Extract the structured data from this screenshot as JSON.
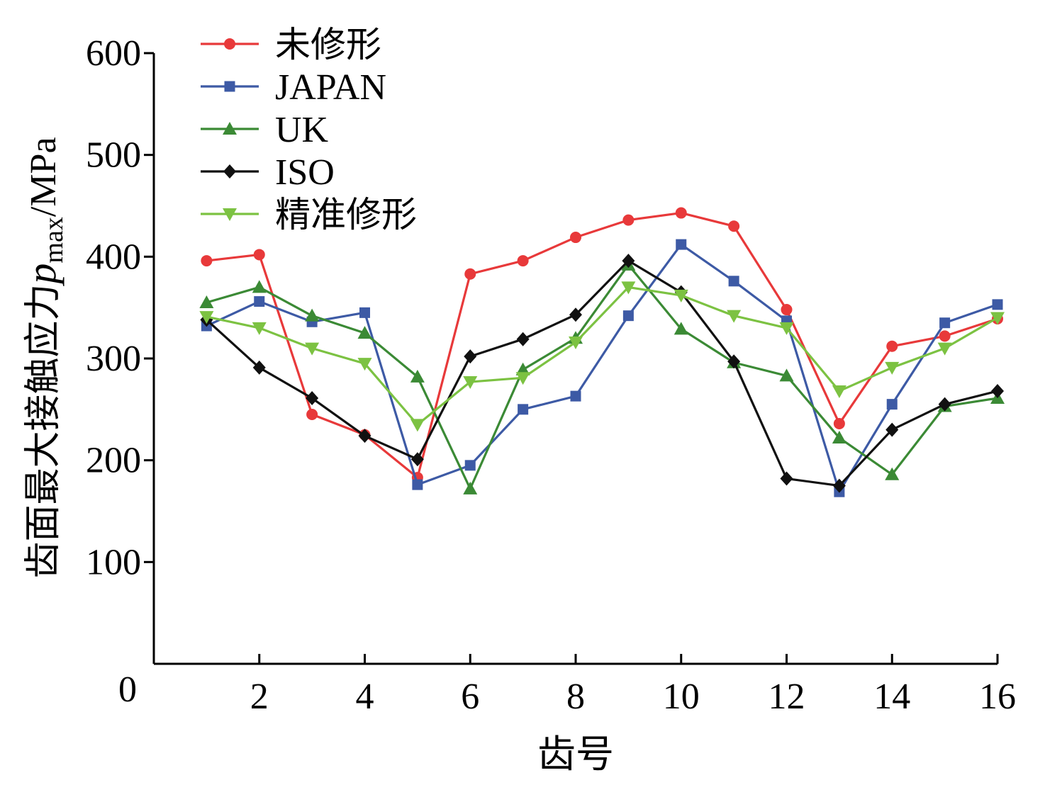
{
  "chart_data": {
    "type": "line",
    "title": "",
    "xlabel": "齿号",
    "ylabel": {
      "prefix": "齿面最大接触应力",
      "symbol": "p",
      "subscript": "max",
      "unit": "/MPa"
    },
    "x": [
      1,
      2,
      3,
      4,
      5,
      6,
      7,
      8,
      9,
      10,
      11,
      12,
      13,
      14,
      15,
      16
    ],
    "xlim": [
      0,
      16
    ],
    "ylim": [
      0,
      600
    ],
    "xticks": [
      2,
      4,
      6,
      8,
      10,
      12,
      14,
      16
    ],
    "yticks": [
      100,
      200,
      300,
      400,
      500,
      600
    ],
    "origin_label": "0",
    "grid": false,
    "legend_position": "top-left",
    "series": [
      {
        "name": "未修形",
        "color": "#e8393a",
        "marker": "circle",
        "values": [
          396,
          402,
          245,
          225,
          183,
          383,
          396,
          419,
          436,
          443,
          430,
          348,
          236,
          312,
          322,
          339
        ]
      },
      {
        "name": "JAPAN",
        "color": "#3d5aa5",
        "marker": "square",
        "values": [
          332,
          356,
          336,
          345,
          176,
          195,
          250,
          263,
          342,
          412,
          376,
          337,
          169,
          255,
          335,
          353
        ]
      },
      {
        "name": "UK",
        "color": "#3b8a35",
        "marker": "triangle-up",
        "values": [
          355,
          370,
          342,
          325,
          282,
          172,
          289,
          320,
          392,
          329,
          296,
          283,
          222,
          186,
          253,
          261
        ]
      },
      {
        "name": "ISO",
        "color": "#111111",
        "marker": "diamond",
        "values": [
          338,
          291,
          261,
          224,
          201,
          302,
          319,
          343,
          396,
          365,
          297,
          182,
          175,
          230,
          255,
          268
        ]
      },
      {
        "name": "精准修形",
        "color": "#7cc242",
        "marker": "triangle-down",
        "values": [
          341,
          330,
          310,
          295,
          235,
          277,
          281,
          316,
          370,
          362,
          342,
          330,
          268,
          291,
          310,
          340
        ]
      }
    ]
  }
}
